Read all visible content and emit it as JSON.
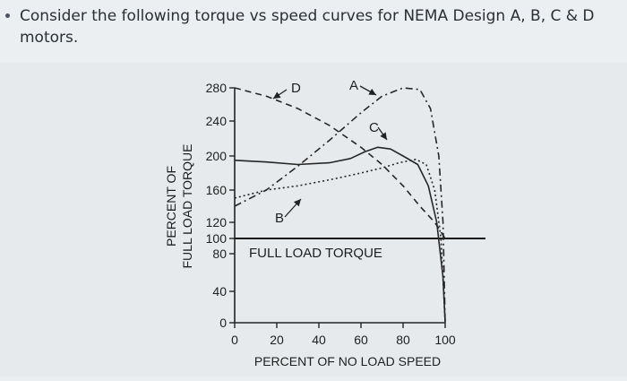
{
  "question": {
    "text": "Consider the following torque vs speed curves for NEMA Design A, B, C & D motors."
  },
  "chart_data": {
    "type": "line",
    "ylabel_line1": "PERCENT OF",
    "ylabel_line2": "FULL LOAD TORQUE",
    "xlabel": "PERCENT OF NO LOAD SPEED",
    "xlim": [
      0,
      100
    ],
    "ylim": [
      0,
      280
    ],
    "x_ticks": [
      0,
      20,
      40,
      60,
      80,
      100
    ],
    "y_ticks": [
      0,
      40,
      80,
      100,
      120,
      160,
      200,
      240,
      280
    ],
    "reference_line": {
      "label": "FULL LOAD TORQUE",
      "y": 100
    },
    "series": [
      {
        "name": "A",
        "style": "dash-dot",
        "x": [
          0,
          15,
          30,
          45,
          60,
          70,
          80,
          88,
          93,
          97,
          99,
          100
        ],
        "y": [
          140,
          160,
          188,
          218,
          250,
          270,
          280,
          278,
          255,
          200,
          120,
          0
        ]
      },
      {
        "name": "B",
        "style": "dotted",
        "x": [
          0,
          15,
          30,
          45,
          60,
          70,
          78,
          86,
          91,
          95,
          98,
          100
        ],
        "y": [
          150,
          160,
          165,
          172,
          180,
          186,
          192,
          196,
          190,
          160,
          100,
          0
        ]
      },
      {
        "name": "C",
        "style": "solid",
        "x": [
          0,
          15,
          30,
          45,
          55,
          62,
          68,
          74,
          80,
          87,
          92,
          96,
          99,
          100
        ],
        "y": [
          195,
          193,
          190,
          192,
          197,
          205,
          210,
          208,
          200,
          190,
          165,
          120,
          55,
          0
        ]
      },
      {
        "name": "D",
        "style": "dashed",
        "x": [
          0,
          15,
          30,
          45,
          60,
          70,
          80,
          88,
          95,
          100
        ],
        "y": [
          280,
          270,
          255,
          235,
          210,
          190,
          165,
          140,
          120,
          100
        ]
      }
    ]
  }
}
